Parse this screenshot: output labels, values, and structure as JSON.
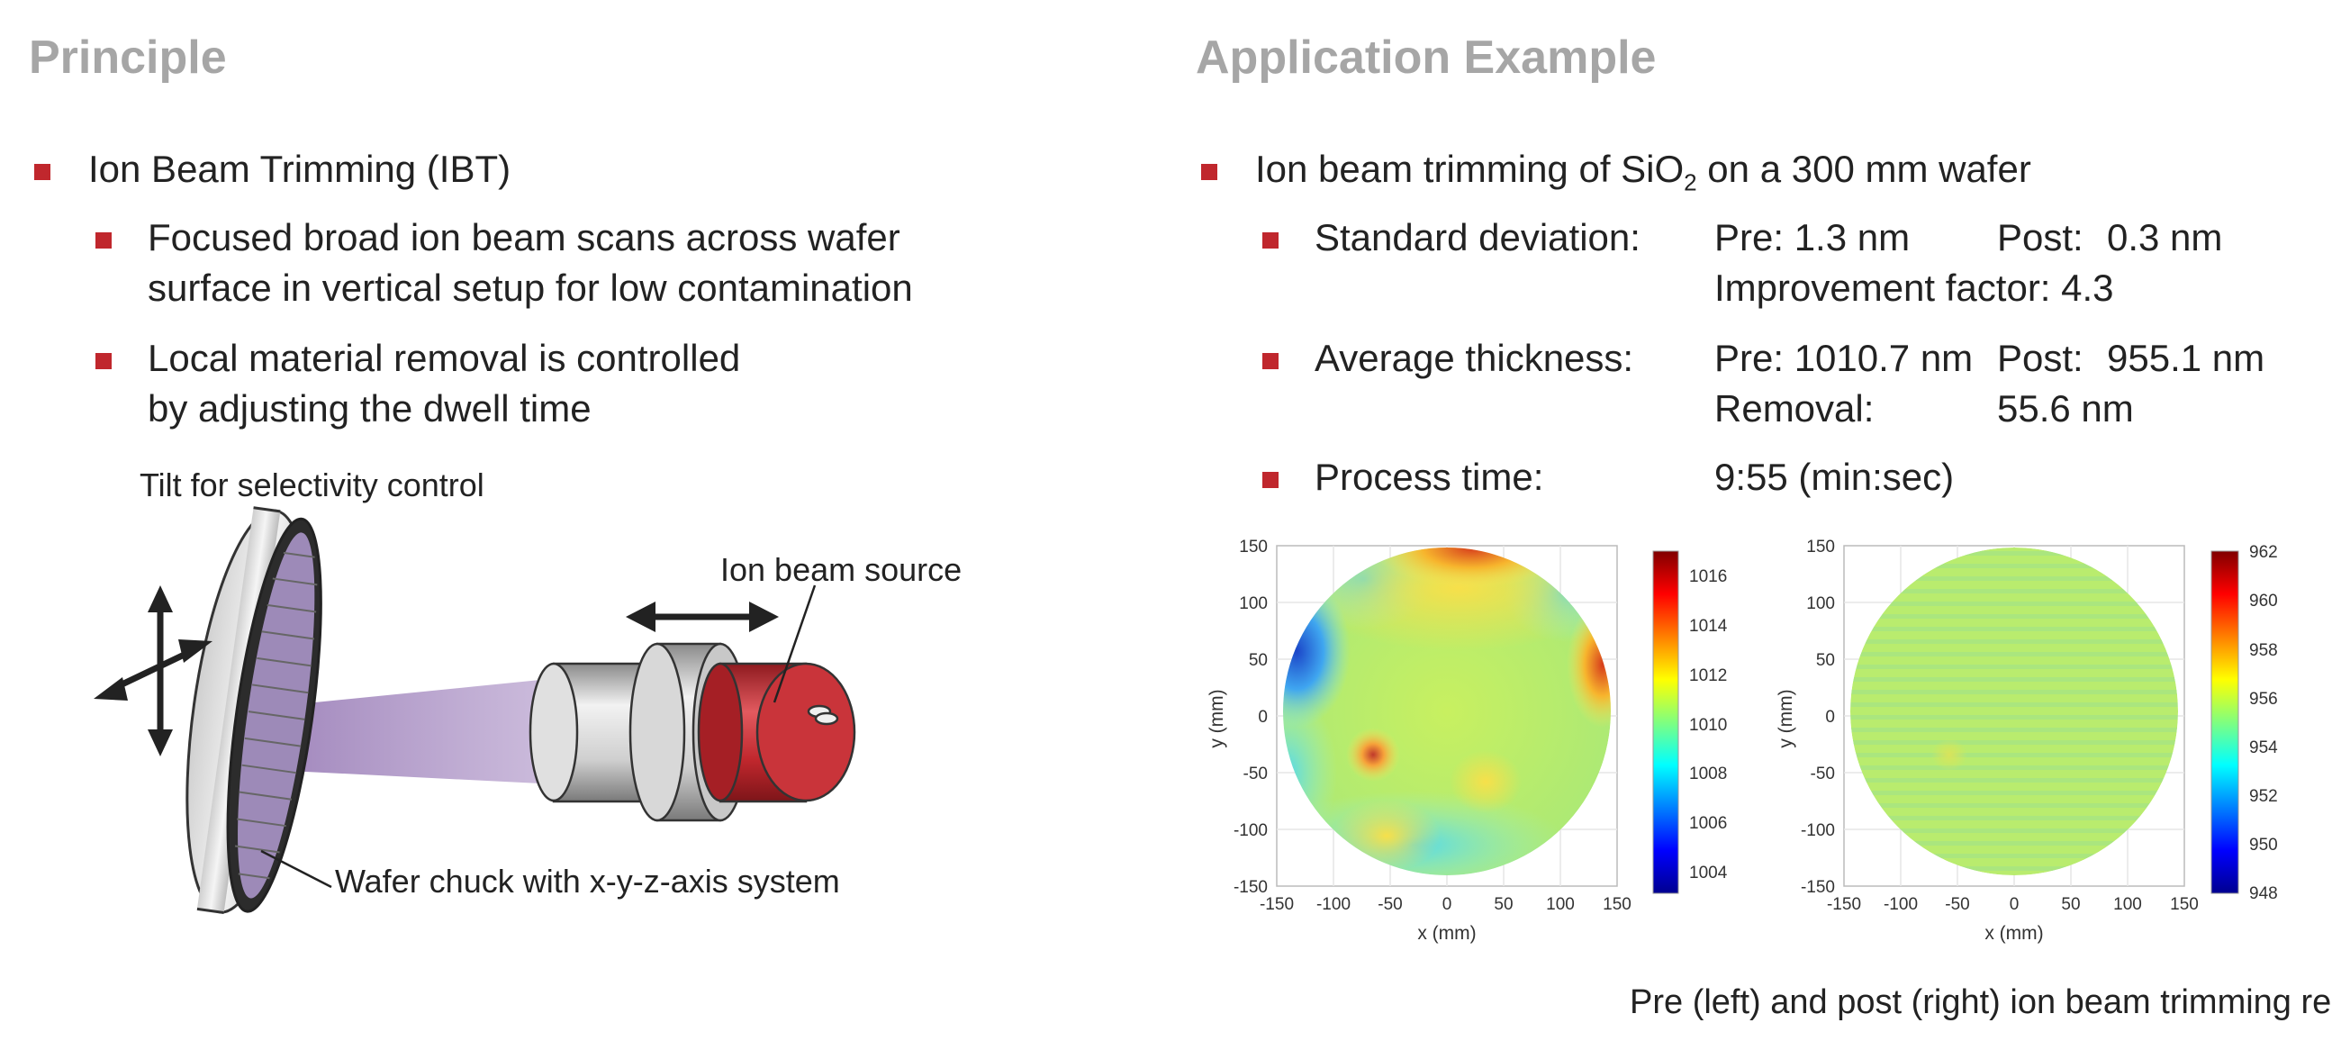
{
  "principle": {
    "heading": "Principle",
    "bullet1": "Ion Beam Trimming (IBT)",
    "sub1_line1": "Focused broad ion beam scans across wafer",
    "sub1_line2": "surface in vertical setup for low contamination",
    "sub2_line1": "Local material removal is controlled",
    "sub2_line2": "by adjusting the dwell time",
    "label_tilt": "Tilt for selectivity control",
    "label_source": "Ion beam source",
    "label_chuck": "Wafer chuck with x-y-z-axis system"
  },
  "application": {
    "heading": "Application Example",
    "bullet_pre": "Ion beam trimming of SiO",
    "bullet_sub": "2",
    "bullet_post": " on a 300 mm wafer",
    "std_label": "Standard deviation:",
    "std_pre": "Pre: 1.3 nm",
    "std_post_label": "Post:",
    "std_post": "0.3 nm",
    "improvement": "Improvement factor: 4.3",
    "avg_label": "Average thickness:",
    "avg_pre": "Pre: 1010.7 nm",
    "avg_post_label": "Post:",
    "avg_post": "955.1 nm",
    "removal_label": "Removal:",
    "removal_value": "55.6 nm",
    "time_label": "Process time:",
    "time_value": "9:55 (min:sec)",
    "caption": "Pre (left) and post (right) ion beam trimming results"
  },
  "colors": {
    "bullet": "#c0272d",
    "heading": "#a6a6a6",
    "source_red": "#c0272d",
    "beam": "#9b7fb8"
  },
  "chart_data": [
    {
      "type": "heatmap",
      "title": "",
      "xlabel": "x (mm)",
      "ylabel": "y (mm)",
      "xlim": [
        -150,
        150
      ],
      "ylim": [
        -150,
        150
      ],
      "x_ticks": [
        "-150",
        "-100",
        "-50",
        "0",
        "50",
        "100",
        "150"
      ],
      "y_ticks": [
        "150",
        "100",
        "50",
        "0",
        "-50",
        "-100",
        "-150"
      ],
      "colorbar_ticks": [
        "1016",
        "1014",
        "1012",
        "1010",
        "1008",
        "1006",
        "1004"
      ],
      "colorbar_range": [
        1003,
        1017
      ],
      "grid": true,
      "features": [
        {
          "x": 20,
          "y": 140,
          "value": 1016
        },
        {
          "x": -110,
          "y": 60,
          "value": 1006
        },
        {
          "x": 145,
          "y": 60,
          "value": 1015
        },
        {
          "x": -60,
          "y": -37,
          "value": 1015
        },
        {
          "x": 0,
          "y": -50,
          "value": 1010
        }
      ]
    },
    {
      "type": "heatmap",
      "title": "",
      "xlabel": "x (mm)",
      "ylabel": "y (mm)",
      "xlim": [
        -150,
        150
      ],
      "ylim": [
        -150,
        150
      ],
      "x_ticks": [
        "-150",
        "-100",
        "-50",
        "0",
        "50",
        "100",
        "150"
      ],
      "y_ticks": [
        "150",
        "100",
        "50",
        "0",
        "-50",
        "-100",
        "-150"
      ],
      "colorbar_ticks": [
        "962",
        "960",
        "958",
        "956",
        "954",
        "952",
        "950",
        "948"
      ],
      "colorbar_range": [
        948,
        962
      ],
      "grid": true,
      "features": [
        {
          "x": 0,
          "y": 0,
          "value": 955
        },
        {
          "x": -60,
          "y": -35,
          "value": 956
        }
      ]
    }
  ]
}
